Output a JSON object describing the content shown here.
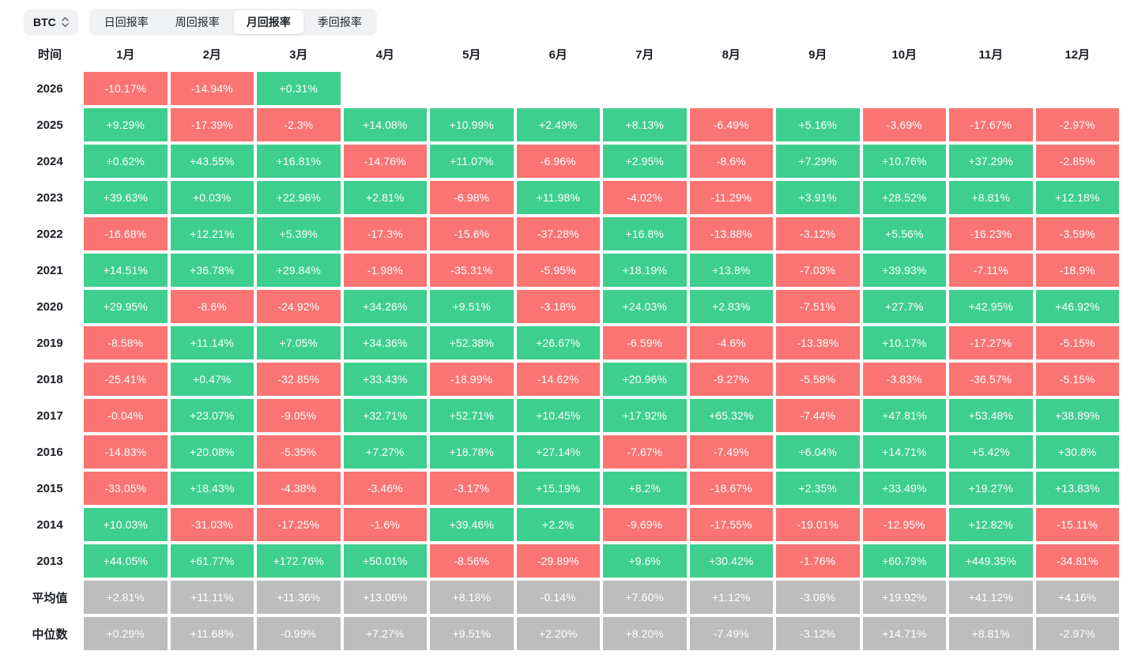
{
  "toolbar": {
    "symbol": "BTC",
    "active_tab": "monthly",
    "tabs": [
      {
        "id": "daily",
        "label": "日回报率"
      },
      {
        "id": "weekly",
        "label": "周回报率"
      },
      {
        "id": "monthly",
        "label": "月回报率"
      },
      {
        "id": "quarterly",
        "label": "季回报率"
      }
    ]
  },
  "chart_data": {
    "type": "heatmap",
    "title": "BTC 月回报率",
    "corner_label": "时间",
    "columns": [
      "1月",
      "2月",
      "3月",
      "4月",
      "5月",
      "6月",
      "7月",
      "8月",
      "9月",
      "10月",
      "11月",
      "12月"
    ],
    "colors": {
      "positive": "#3ecf8e",
      "negative": "#f97472",
      "summary": "#bdbdbd"
    },
    "rows": [
      {
        "id": "2026",
        "label": "2026",
        "kind": "year",
        "values": [
          "-10.17%",
          "-14.94%",
          "+0.31%"
        ]
      },
      {
        "id": "2025",
        "label": "2025",
        "kind": "year",
        "values": [
          "+9.29%",
          "-17.39%",
          "-2.3%",
          "+14.08%",
          "+10.99%",
          "+2.49%",
          "+8.13%",
          "-6.49%",
          "+5.16%",
          "-3.69%",
          "-17.67%",
          "-2.97%"
        ]
      },
      {
        "id": "2024",
        "label": "2024",
        "kind": "year",
        "values": [
          "+0.62%",
          "+43.55%",
          "+16.81%",
          "-14.76%",
          "+11.07%",
          "-6.96%",
          "+2.95%",
          "-8.6%",
          "+7.29%",
          "+10.76%",
          "+37.29%",
          "-2.85%"
        ]
      },
      {
        "id": "2023",
        "label": "2023",
        "kind": "year",
        "values": [
          "+39.63%",
          "+0.03%",
          "+22.96%",
          "+2.81%",
          "-6.98%",
          "+11.98%",
          "-4.02%",
          "-11.29%",
          "+3.91%",
          "+28.52%",
          "+8.81%",
          "+12.18%"
        ]
      },
      {
        "id": "2022",
        "label": "2022",
        "kind": "year",
        "values": [
          "-16.68%",
          "+12.21%",
          "+5.39%",
          "-17.3%",
          "-15.6%",
          "-37.28%",
          "+16.8%",
          "-13.88%",
          "-3.12%",
          "+5.56%",
          "-16.23%",
          "-3.59%"
        ]
      },
      {
        "id": "2021",
        "label": "2021",
        "kind": "year",
        "values": [
          "+14.51%",
          "+36.78%",
          "+29.84%",
          "-1.98%",
          "-35.31%",
          "-5.95%",
          "+18.19%",
          "+13.8%",
          "-7.03%",
          "+39.93%",
          "-7.11%",
          "-18.9%"
        ]
      },
      {
        "id": "2020",
        "label": "2020",
        "kind": "year",
        "values": [
          "+29.95%",
          "-8.6%",
          "-24.92%",
          "+34.26%",
          "+9.51%",
          "-3.18%",
          "+24.03%",
          "+2.83%",
          "-7.51%",
          "+27.7%",
          "+42.95%",
          "+46.92%"
        ]
      },
      {
        "id": "2019",
        "label": "2019",
        "kind": "year",
        "values": [
          "-8.58%",
          "+11.14%",
          "+7.05%",
          "+34.36%",
          "+52.38%",
          "+26.67%",
          "-6.59%",
          "-4.6%",
          "-13.38%",
          "+10.17%",
          "-17.27%",
          "-5.15%"
        ]
      },
      {
        "id": "2018",
        "label": "2018",
        "kind": "year",
        "values": [
          "-25.41%",
          "+0.47%",
          "-32.85%",
          "+33.43%",
          "-18.99%",
          "-14.62%",
          "+20.96%",
          "-9.27%",
          "-5.58%",
          "-3.83%",
          "-36.57%",
          "-5.15%"
        ]
      },
      {
        "id": "2017",
        "label": "2017",
        "kind": "year",
        "values": [
          "-0.04%",
          "+23.07%",
          "-9.05%",
          "+32.71%",
          "+52.71%",
          "+10.45%",
          "+17.92%",
          "+65.32%",
          "-7.44%",
          "+47.81%",
          "+53.48%",
          "+38.89%"
        ]
      },
      {
        "id": "2016",
        "label": "2016",
        "kind": "year",
        "values": [
          "-14.83%",
          "+20.08%",
          "-5.35%",
          "+7.27%",
          "+18.78%",
          "+27.14%",
          "-7.67%",
          "-7.49%",
          "+6.04%",
          "+14.71%",
          "+5.42%",
          "+30.8%"
        ]
      },
      {
        "id": "2015",
        "label": "2015",
        "kind": "year",
        "values": [
          "-33.05%",
          "+18.43%",
          "-4.38%",
          "-3.46%",
          "-3.17%",
          "+15.19%",
          "+8.2%",
          "-18.67%",
          "+2.35%",
          "+33.49%",
          "+19.27%",
          "+13.83%"
        ]
      },
      {
        "id": "2014",
        "label": "2014",
        "kind": "year",
        "values": [
          "+10.03%",
          "-31.03%",
          "-17.25%",
          "-1.6%",
          "+39.46%",
          "+2.2%",
          "-9.69%",
          "-17.55%",
          "-19.01%",
          "-12.95%",
          "+12.82%",
          "-15.11%"
        ]
      },
      {
        "id": "2013",
        "label": "2013",
        "kind": "year",
        "values": [
          "+44.05%",
          "+61.77%",
          "+172.76%",
          "+50.01%",
          "-8.56%",
          "-29.89%",
          "+9.6%",
          "+30.42%",
          "-1.76%",
          "+60.79%",
          "+449.35%",
          "-34.81%"
        ]
      },
      {
        "id": "average",
        "label": "平均值",
        "kind": "summary",
        "values": [
          "+2.81%",
          "+11.11%",
          "+11.36%",
          "+13.06%",
          "+8.18%",
          "-0.14%",
          "+7.60%",
          "+1.12%",
          "-3.08%",
          "+19.92%",
          "+41.12%",
          "+4.16%"
        ]
      },
      {
        "id": "median",
        "label": "中位数",
        "kind": "summary",
        "values": [
          "+0.29%",
          "+11.68%",
          "-0.99%",
          "+7.27%",
          "+9.51%",
          "+2.20%",
          "+8.20%",
          "-7.49%",
          "-3.12%",
          "+14.71%",
          "+8.81%",
          "-2.97%"
        ]
      }
    ]
  }
}
